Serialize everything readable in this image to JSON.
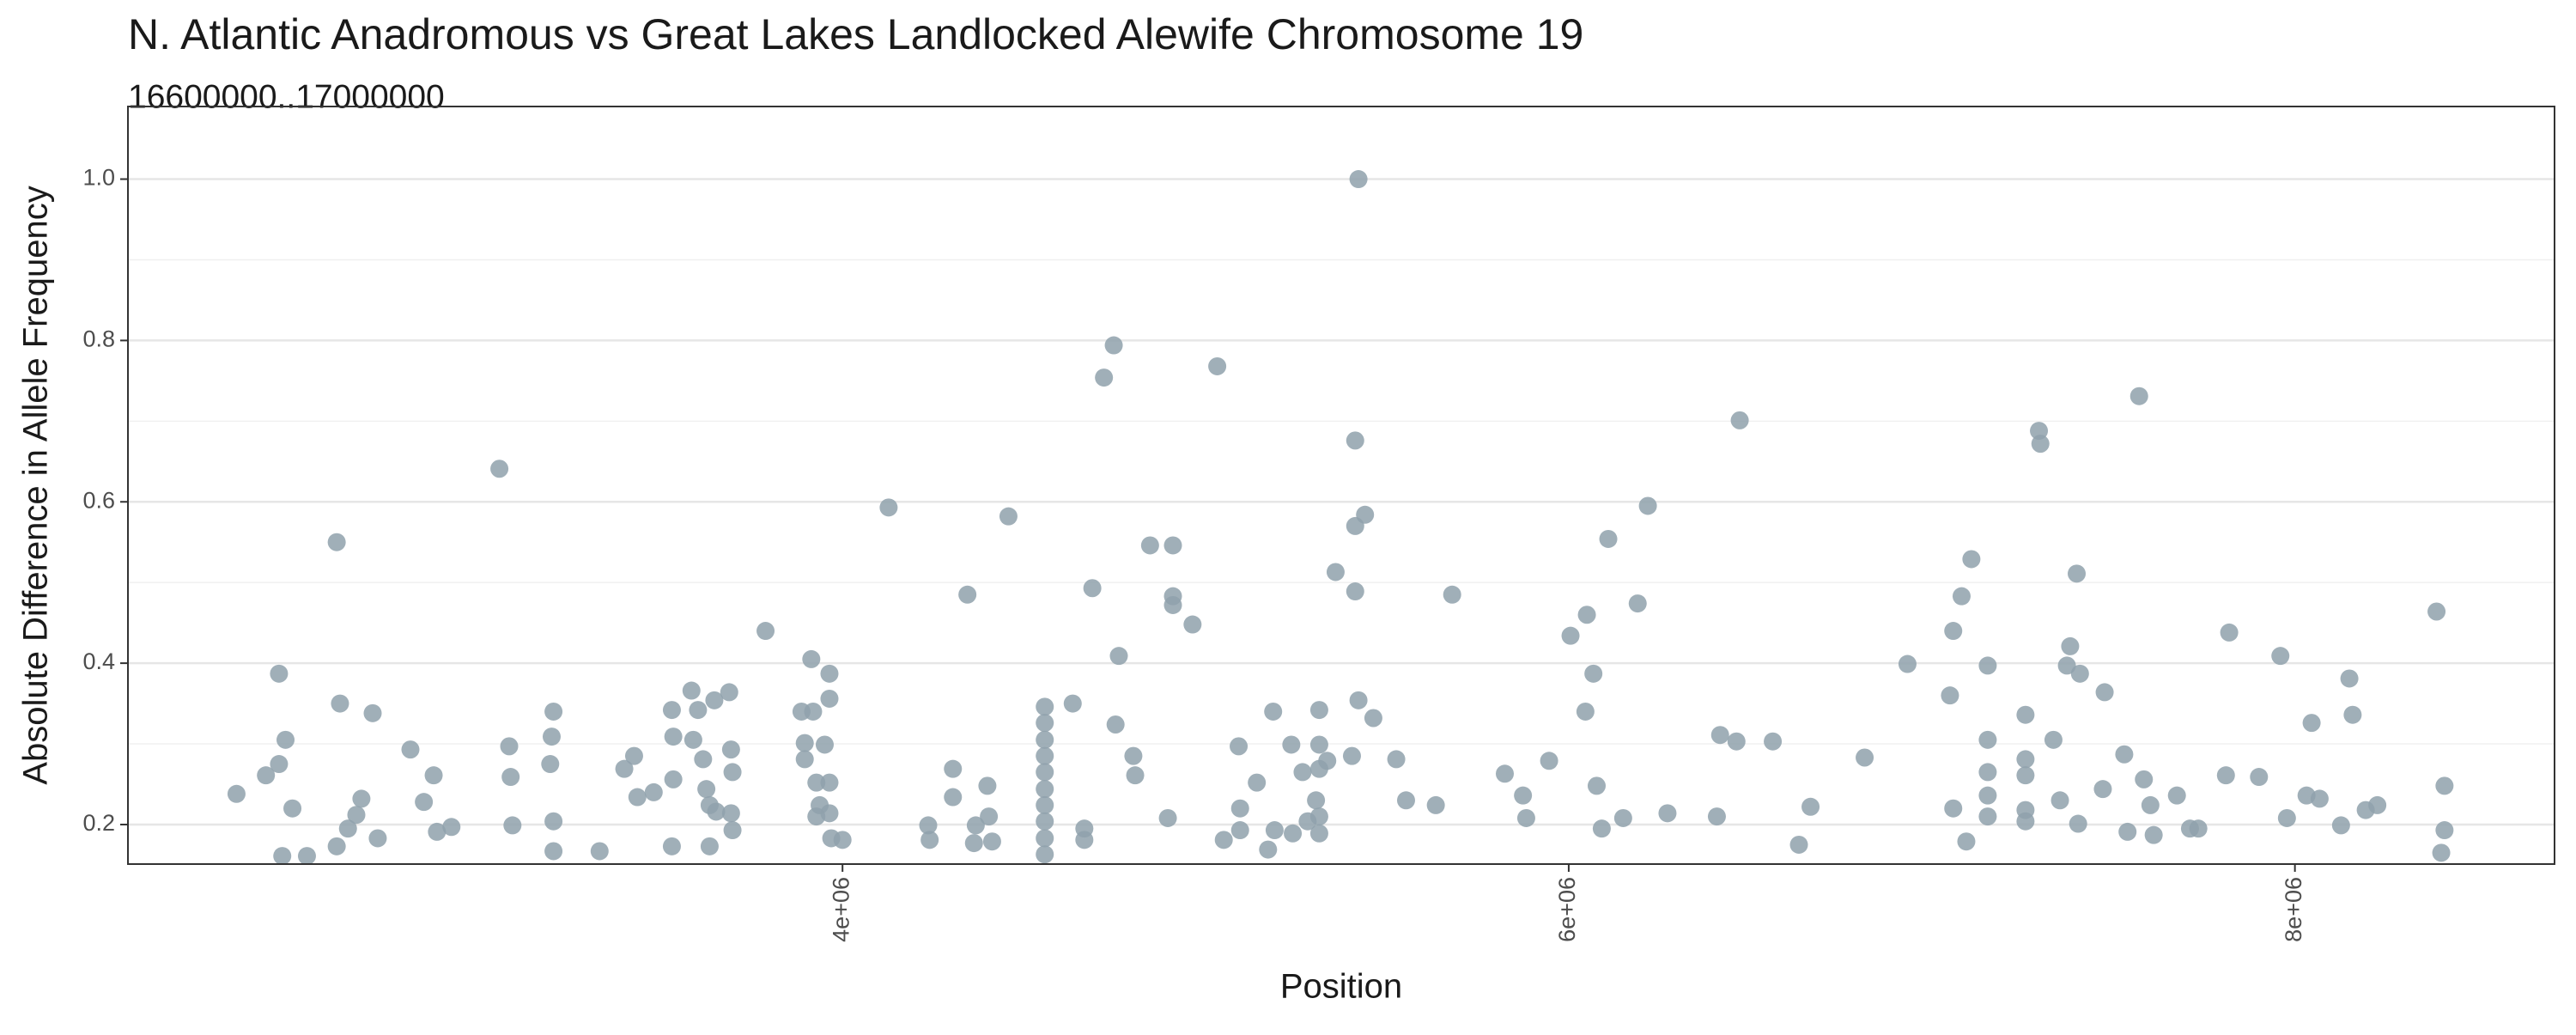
{
  "chart_data": {
    "type": "scatter",
    "title": "N. Atlantic Anadromous vs Great Lakes Landlocked Alewife Chromosome 19",
    "subtitle": "16600000..17000000",
    "x_label": "Position",
    "y_label": "Absolute Difference in Allele Frequency",
    "color": "#8fa1ab",
    "grid": true,
    "xlim": [
      2032000,
      8715000
    ],
    "ylim": [
      0.151,
      1.09
    ],
    "xticks": [
      {
        "value": 4000000,
        "label": "4e+06"
      },
      {
        "value": 6000000,
        "label": "6e+06"
      },
      {
        "value": 8000000,
        "label": "8e+06"
      }
    ],
    "yticks": [
      0.2,
      0.4,
      0.6,
      0.8,
      {
        "value": 1,
        "label": "1.0"
      }
    ],
    "y_minor_ticks": [
      0.3,
      0.5,
      0.7,
      0.9
    ],
    "x": [
      2331000,
      2412000,
      2448000,
      2448000,
      2466000,
      2457000,
      2485000,
      2525000,
      2607000,
      2616000,
      2607000,
      2638000,
      2661000,
      2675000,
      2706000,
      2720000,
      2810000,
      2847000,
      2874000,
      2883000,
      2923000,
      3055000,
      3082000,
      3086000,
      3091000,
      3195000,
      3204000,
      3199000,
      3204000,
      3204000,
      3331000,
      3399000,
      3426000,
      3435000,
      3480000,
      3530000,
      3530000,
      3534000,
      3534000,
      3584000,
      3589000,
      3602000,
      3616000,
      3625000,
      3634000,
      3634000,
      3647000,
      3652000,
      3688000,
      3693000,
      3697000,
      3693000,
      3697000,
      3788000,
      3887000,
      3896000,
      3896000,
      3914000,
      3919000,
      3928000,
      3928000,
      3937000,
      3951000,
      3964000,
      3964000,
      3964000,
      3964000,
      3969000,
      4000000,
      4127000,
      4236000,
      4240000,
      4304000,
      4304000,
      4344000,
      4362000,
      4367000,
      4399000,
      4403000,
      4412000,
      4457000,
      4557000,
      4557000,
      4557000,
      4557000,
      4557000,
      4557000,
      4557000,
      4557000,
      4557000,
      4557000,
      4634000,
      4666000,
      4666000,
      4688000,
      4720000,
      4747000,
      4752000,
      4761000,
      4801000,
      4806000,
      4847000,
      4896000,
      4910000,
      4910000,
      4910000,
      4964000,
      5032000,
      5050000,
      5091000,
      5095000,
      5095000,
      5141000,
      5172000,
      5186000,
      5190000,
      5236000,
      5240000,
      5267000,
      5281000,
      5304000,
      5313000,
      5313000,
      5313000,
      5313000,
      5313000,
      5335000,
      5358000,
      5403000,
      5421000,
      5412000,
      5412000,
      5412000,
      5421000,
      5439000,
      5462000,
      5525000,
      5552000,
      5634000,
      5679000,
      5824000,
      5874000,
      5883000,
      5946000,
      6005000,
      6046000,
      6050000,
      6068000,
      6077000,
      6091000,
      6109000,
      6150000,
      6190000,
      6218000,
      6272000,
      6417000,
      6408000,
      6462000,
      6471000,
      6562000,
      6634000,
      6666000,
      6815000,
      6933000,
      7050000,
      7059000,
      7059000,
      7095000,
      7082000,
      7109000,
      7154000,
      7154000,
      7154000,
      7154000,
      7154000,
      7258000,
      7258000,
      7258000,
      7258000,
      7258000,
      7295000,
      7299000,
      7335000,
      7353000,
      7372000,
      7381000,
      7399000,
      7408000,
      7403000,
      7471000,
      7476000,
      7530000,
      7539000,
      7571000,
      7584000,
      7602000,
      7611000,
      7675000,
      7711000,
      7734000,
      7810000,
      7819000,
      7901000,
      7960000,
      7978000,
      8032000,
      8046000,
      8068000,
      8127000,
      8150000,
      8159000,
      8195000,
      8227000,
      8390000,
      8403000,
      8412000,
      8412000
    ],
    "values": [
      0.238,
      0.261,
      0.387,
      0.275,
      0.305,
      0.161,
      0.22,
      0.161,
      0.55,
      0.35,
      0.173,
      0.195,
      0.212,
      0.232,
      0.338,
      0.183,
      0.293,
      0.228,
      0.261,
      0.191,
      0.197,
      0.641,
      0.297,
      0.259,
      0.199,
      0.275,
      0.34,
      0.309,
      0.204,
      0.167,
      0.167,
      0.269,
      0.285,
      0.234,
      0.24,
      0.342,
      0.173,
      0.309,
      0.256,
      0.366,
      0.305,
      0.342,
      0.281,
      0.244,
      0.224,
      0.173,
      0.354,
      0.216,
      0.364,
      0.293,
      0.265,
      0.214,
      0.193,
      0.44,
      0.34,
      0.281,
      0.301,
      0.405,
      0.34,
      0.252,
      0.21,
      0.224,
      0.299,
      0.387,
      0.356,
      0.252,
      0.214,
      0.183,
      0.181,
      0.593,
      0.199,
      0.181,
      0.269,
      0.234,
      0.485,
      0.177,
      0.199,
      0.248,
      0.21,
      0.179,
      0.582,
      0.346,
      0.285,
      0.265,
      0.244,
      0.224,
      0.204,
      0.183,
      0.163,
      0.326,
      0.305,
      0.35,
      0.195,
      0.181,
      0.493,
      0.754,
      0.794,
      0.324,
      0.409,
      0.285,
      0.261,
      0.546,
      0.208,
      0.546,
      0.483,
      0.472,
      0.448,
      0.768,
      0.181,
      0.297,
      0.22,
      0.193,
      0.252,
      0.169,
      0.34,
      0.193,
      0.299,
      0.189,
      0.265,
      0.204,
      0.23,
      0.342,
      0.299,
      0.269,
      0.21,
      0.189,
      0.279,
      0.513,
      0.285,
      1.0,
      0.676,
      0.57,
      0.489,
      0.354,
      0.584,
      0.332,
      0.281,
      0.23,
      0.224,
      0.485,
      0.263,
      0.236,
      0.208,
      0.279,
      0.434,
      0.34,
      0.46,
      0.387,
      0.248,
      0.195,
      0.554,
      0.208,
      0.474,
      0.595,
      0.214,
      0.311,
      0.21,
      0.303,
      0.701,
      0.303,
      0.175,
      0.222,
      0.283,
      0.399,
      0.36,
      0.44,
      0.22,
      0.179,
      0.483,
      0.529,
      0.397,
      0.305,
      0.265,
      0.236,
      0.21,
      0.336,
      0.281,
      0.261,
      0.218,
      0.204,
      0.688,
      0.672,
      0.305,
      0.23,
      0.397,
      0.421,
      0.511,
      0.387,
      0.201,
      0.244,
      0.364,
      0.287,
      0.191,
      0.731,
      0.256,
      0.224,
      0.187,
      0.236,
      0.195,
      0.195,
      0.261,
      0.438,
      0.259,
      0.409,
      0.208,
      0.236,
      0.326,
      0.232,
      0.199,
      0.381,
      0.336,
      0.218,
      0.224,
      0.464,
      0.165,
      0.248,
      0.193
    ]
  }
}
